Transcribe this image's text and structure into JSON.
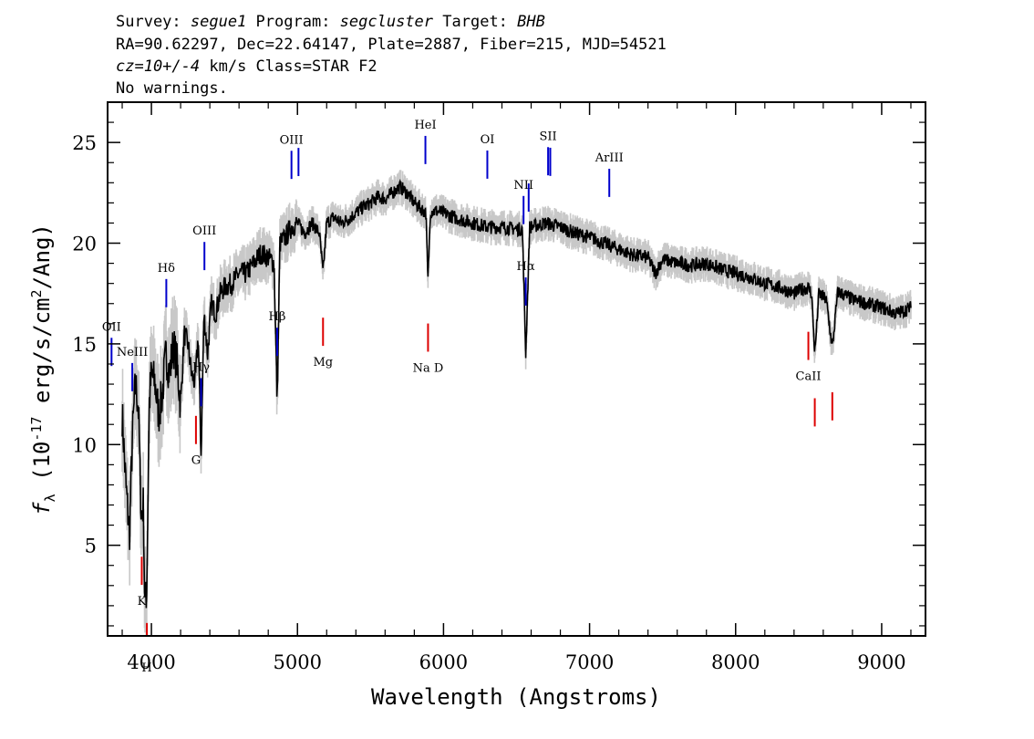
{
  "header": {
    "line1": {
      "survey_label": "Survey: ",
      "survey": "segue1",
      "program_label": " Program: ",
      "program": "segcluster",
      "target_label": " Target: ",
      "target": "BHB"
    },
    "line2": "RA=90.62297, Dec=22.64147, Plate=2887, Fiber=215, MJD=54521",
    "line3": {
      "cz": "cz=10+/-4",
      "rest": " km/s Class=STAR F2"
    },
    "line4": "No warnings."
  },
  "chart_data": {
    "type": "line",
    "xlabel": "Wavelength (Angstroms)",
    "ylabel": {
      "f": "f",
      "sub": "λ",
      "pre": " (10",
      "sup": "-17",
      "mid": " erg/s/cm",
      "sup2": "2",
      "post": "/Ang)"
    },
    "xlim": [
      3700,
      9300
    ],
    "ylim": [
      0.5,
      27
    ],
    "xticks": [
      4000,
      5000,
      6000,
      7000,
      8000,
      9000
    ],
    "yticks": [
      5,
      10,
      15,
      20,
      25
    ],
    "colors": {
      "flux": "#000000",
      "error": "#c8c8c8",
      "emission": "#0000cc",
      "absorption": "#dd0000"
    },
    "series": [
      {
        "x": [
          3800,
          3825,
          3850,
          3870,
          3890,
          3910,
          3930,
          3945,
          3955,
          3968,
          3985,
          4000,
          4025,
          4050,
          4075,
          4100,
          4125,
          4150,
          4175,
          4200,
          4225,
          4250,
          4275,
          4300,
          4320,
          4340,
          4360,
          4385,
          4410,
          4440,
          4470,
          4500,
          4550,
          4600,
          4650,
          4700,
          4750,
          4800,
          4840,
          4861,
          4880,
          4920,
          4960,
          5000,
          5050,
          5100,
          5150,
          5175,
          5200,
          5250,
          5300,
          5350,
          5400,
          5450,
          5500,
          5550,
          5600,
          5650,
          5700,
          5750,
          5800,
          5850,
          5880,
          5893,
          5910,
          5950,
          6000,
          6100,
          6200,
          6300,
          6400,
          6500,
          6540,
          6563,
          6590,
          6650,
          6700,
          6800,
          6900,
          7000,
          7100,
          7200,
          7300,
          7400,
          7450,
          7500,
          7600,
          7700,
          7800,
          7900,
          8000,
          8100,
          8200,
          8300,
          8400,
          8450,
          8498,
          8520,
          8542,
          8570,
          8620,
          8662,
          8700,
          8800,
          8900,
          9000,
          9100,
          9200
        ],
        "y": [
          11.5,
          8.0,
          5.5,
          10.5,
          13.0,
          12.0,
          6.5,
          7.0,
          2.0,
          2.8,
          12.0,
          13.5,
          13.0,
          11.5,
          12.5,
          14.5,
          13.5,
          15.0,
          14.0,
          12.0,
          15.5,
          15.0,
          13.5,
          13.0,
          15.5,
          9.5,
          16.5,
          14.5,
          17.0,
          16.5,
          17.5,
          17.8,
          18.0,
          18.5,
          18.5,
          19.0,
          19.5,
          19.3,
          19.0,
          12.0,
          20.0,
          20.3,
          20.8,
          21.0,
          20.5,
          21.0,
          20.5,
          18.5,
          21.0,
          21.3,
          21.0,
          21.2,
          21.5,
          21.8,
          22.0,
          22.3,
          22.2,
          22.5,
          22.8,
          22.5,
          22.0,
          21.7,
          21.5,
          18.0,
          21.6,
          21.6,
          21.5,
          21.2,
          21.0,
          20.8,
          20.8,
          20.7,
          20.7,
          14.5,
          20.8,
          20.9,
          21.0,
          20.8,
          20.5,
          20.3,
          20.0,
          19.7,
          19.4,
          19.3,
          18.5,
          19.2,
          19.0,
          18.9,
          19.0,
          18.7,
          18.5,
          18.3,
          18.0,
          17.8,
          17.5,
          17.7,
          17.8,
          17.5,
          14.5,
          17.5,
          17.2,
          14.8,
          17.6,
          17.2,
          17.0,
          16.8,
          16.5,
          16.8
        ]
      }
    ],
    "lines": [
      {
        "label": "OII",
        "wave": 3727,
        "type": "emission"
      },
      {
        "label": "NeIII",
        "wave": 3869,
        "type": "emission"
      },
      {
        "label": "Hδ",
        "wave": 4102,
        "type": "emission"
      },
      {
        "label": "Hγ",
        "wave": 4340,
        "type": "emission"
      },
      {
        "label": "OIII",
        "wave": 4363,
        "type": "emission"
      },
      {
        "label": "Hβ",
        "wave": 4861,
        "type": "emission"
      },
      {
        "label": "OIII",
        "wave": 4959,
        "type": "emission"
      },
      {
        "label": "OIII",
        "wave": 5007,
        "type": "emission"
      },
      {
        "label": "HeI",
        "wave": 5876,
        "type": "emission"
      },
      {
        "label": "OI",
        "wave": 6300,
        "type": "emission"
      },
      {
        "label": "NII",
        "wave": 6548,
        "type": "emission"
      },
      {
        "label": "Hα",
        "wave": 6563,
        "type": "emission"
      },
      {
        "label": "NII",
        "wave": 6583,
        "type": "emission"
      },
      {
        "label": "SII",
        "wave": 6716,
        "type": "emission"
      },
      {
        "label": "SII",
        "wave": 6731,
        "type": "emission"
      },
      {
        "label": "ArIII",
        "wave": 7135,
        "type": "emission"
      },
      {
        "label": "K",
        "wave": 3934,
        "type": "absorption"
      },
      {
        "label": "H",
        "wave": 3969,
        "type": "absorption"
      },
      {
        "label": "G",
        "wave": 4305,
        "type": "absorption"
      },
      {
        "label": "Mg",
        "wave": 5175,
        "type": "absorption"
      },
      {
        "label": "Na D",
        "wave": 5894,
        "type": "absorption"
      },
      {
        "label": "CaII",
        "wave": 8498,
        "type": "absorption"
      },
      {
        "label": "CaII",
        "wave": 8542,
        "type": "absorption"
      },
      {
        "label": "CaII",
        "wave": 8662,
        "type": "absorption"
      }
    ]
  }
}
